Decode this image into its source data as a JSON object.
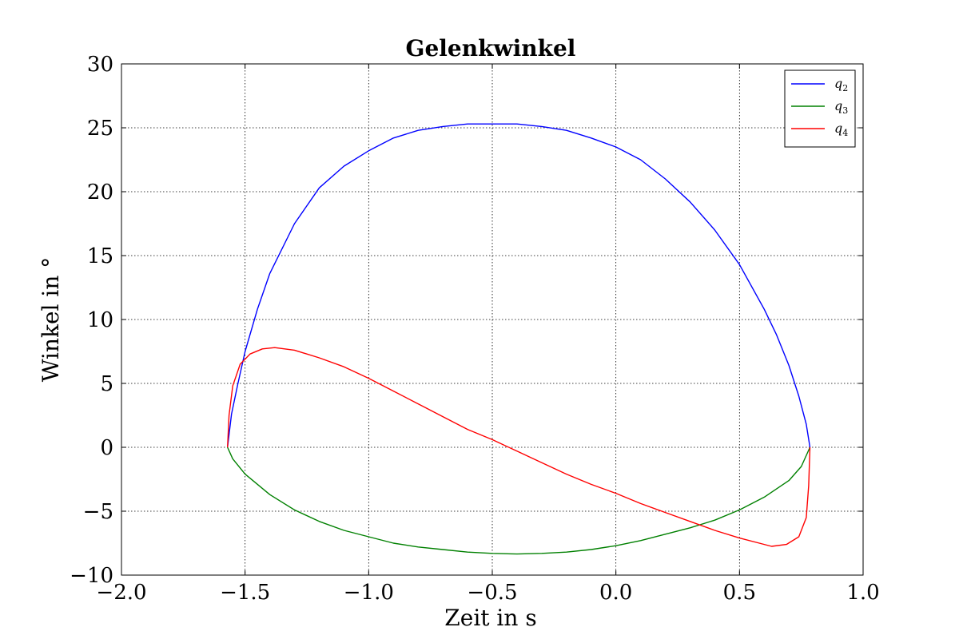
{
  "chart_data": {
    "type": "line",
    "title": "Gelenkwinkel",
    "xlabel": "Zeit in s",
    "ylabel": "Winkel in °",
    "xlim": [
      -2.0,
      1.0
    ],
    "ylim": [
      -10,
      30
    ],
    "x_ticks": [
      -2.0,
      -1.5,
      -1.0,
      -0.5,
      0.0,
      0.5,
      1.0
    ],
    "x_tick_labels": [
      "−2.0",
      "−1.5",
      "−1.0",
      "−0.5",
      "0.0",
      "0.5",
      "1.0"
    ],
    "y_ticks": [
      -10,
      -5,
      0,
      5,
      10,
      15,
      20,
      25,
      30
    ],
    "y_tick_labels": [
      "−10",
      "−5",
      "0",
      "5",
      "10",
      "15",
      "20",
      "25",
      "30"
    ],
    "grid": true,
    "legend_position": "top-right",
    "series": [
      {
        "name": "q2",
        "legend_base": "q",
        "legend_sub": "2",
        "color": "#0000ff",
        "points": [
          [
            -1.571,
            0.0
          ],
          [
            -1.555,
            2.6
          ],
          [
            -1.53,
            4.9
          ],
          [
            -1.5,
            7.5
          ],
          [
            -1.45,
            10.8
          ],
          [
            -1.4,
            13.6
          ],
          [
            -1.3,
            17.5
          ],
          [
            -1.2,
            20.3
          ],
          [
            -1.1,
            22.0
          ],
          [
            -1.0,
            23.2
          ],
          [
            -0.9,
            24.2
          ],
          [
            -0.8,
            24.8
          ],
          [
            -0.7,
            25.1
          ],
          [
            -0.6,
            25.3
          ],
          [
            -0.5,
            25.3
          ],
          [
            -0.4,
            25.3
          ],
          [
            -0.3,
            25.1
          ],
          [
            -0.2,
            24.8
          ],
          [
            -0.1,
            24.2
          ],
          [
            0.0,
            23.5
          ],
          [
            0.1,
            22.5
          ],
          [
            0.2,
            21.0
          ],
          [
            0.3,
            19.2
          ],
          [
            0.4,
            17.0
          ],
          [
            0.5,
            14.3
          ],
          [
            0.6,
            10.8
          ],
          [
            0.65,
            8.8
          ],
          [
            0.7,
            6.4
          ],
          [
            0.74,
            4.0
          ],
          [
            0.77,
            1.8
          ],
          [
            0.785,
            0.0
          ]
        ]
      },
      {
        "name": "q3",
        "legend_base": "q",
        "legend_sub": "3",
        "color": "#008000",
        "points": [
          [
            -1.571,
            0.0
          ],
          [
            -1.55,
            -0.9
          ],
          [
            -1.5,
            -2.1
          ],
          [
            -1.4,
            -3.7
          ],
          [
            -1.3,
            -4.9
          ],
          [
            -1.2,
            -5.8
          ],
          [
            -1.1,
            -6.5
          ],
          [
            -1.0,
            -7.0
          ],
          [
            -0.9,
            -7.5
          ],
          [
            -0.8,
            -7.8
          ],
          [
            -0.7,
            -8.0
          ],
          [
            -0.6,
            -8.2
          ],
          [
            -0.5,
            -8.3
          ],
          [
            -0.4,
            -8.35
          ],
          [
            -0.3,
            -8.3
          ],
          [
            -0.2,
            -8.2
          ],
          [
            -0.1,
            -8.0
          ],
          [
            0.0,
            -7.7
          ],
          [
            0.1,
            -7.3
          ],
          [
            0.2,
            -6.8
          ],
          [
            0.3,
            -6.3
          ],
          [
            0.4,
            -5.7
          ],
          [
            0.5,
            -4.9
          ],
          [
            0.6,
            -3.9
          ],
          [
            0.7,
            -2.6
          ],
          [
            0.75,
            -1.5
          ],
          [
            0.785,
            0.0
          ]
        ]
      },
      {
        "name": "q4",
        "legend_base": "q",
        "legend_sub": "4",
        "color": "#ff0000",
        "points": [
          [
            -1.571,
            0.0
          ],
          [
            -1.565,
            2.5
          ],
          [
            -1.55,
            4.8
          ],
          [
            -1.52,
            6.5
          ],
          [
            -1.48,
            7.3
          ],
          [
            -1.43,
            7.7
          ],
          [
            -1.38,
            7.8
          ],
          [
            -1.3,
            7.6
          ],
          [
            -1.2,
            7.0
          ],
          [
            -1.1,
            6.3
          ],
          [
            -1.0,
            5.4
          ],
          [
            -0.9,
            4.4
          ],
          [
            -0.8,
            3.4
          ],
          [
            -0.7,
            2.4
          ],
          [
            -0.6,
            1.4
          ],
          [
            -0.5,
            0.6
          ],
          [
            -0.4,
            -0.3
          ],
          [
            -0.3,
            -1.2
          ],
          [
            -0.2,
            -2.1
          ],
          [
            -0.1,
            -2.9
          ],
          [
            0.0,
            -3.6
          ],
          [
            0.1,
            -4.4
          ],
          [
            0.2,
            -5.1
          ],
          [
            0.3,
            -5.8
          ],
          [
            0.4,
            -6.5
          ],
          [
            0.5,
            -7.1
          ],
          [
            0.58,
            -7.5
          ],
          [
            0.63,
            -7.75
          ],
          [
            0.69,
            -7.6
          ],
          [
            0.74,
            -7.0
          ],
          [
            0.77,
            -5.5
          ],
          [
            0.78,
            -3.0
          ],
          [
            0.785,
            0.0
          ]
        ]
      }
    ]
  }
}
